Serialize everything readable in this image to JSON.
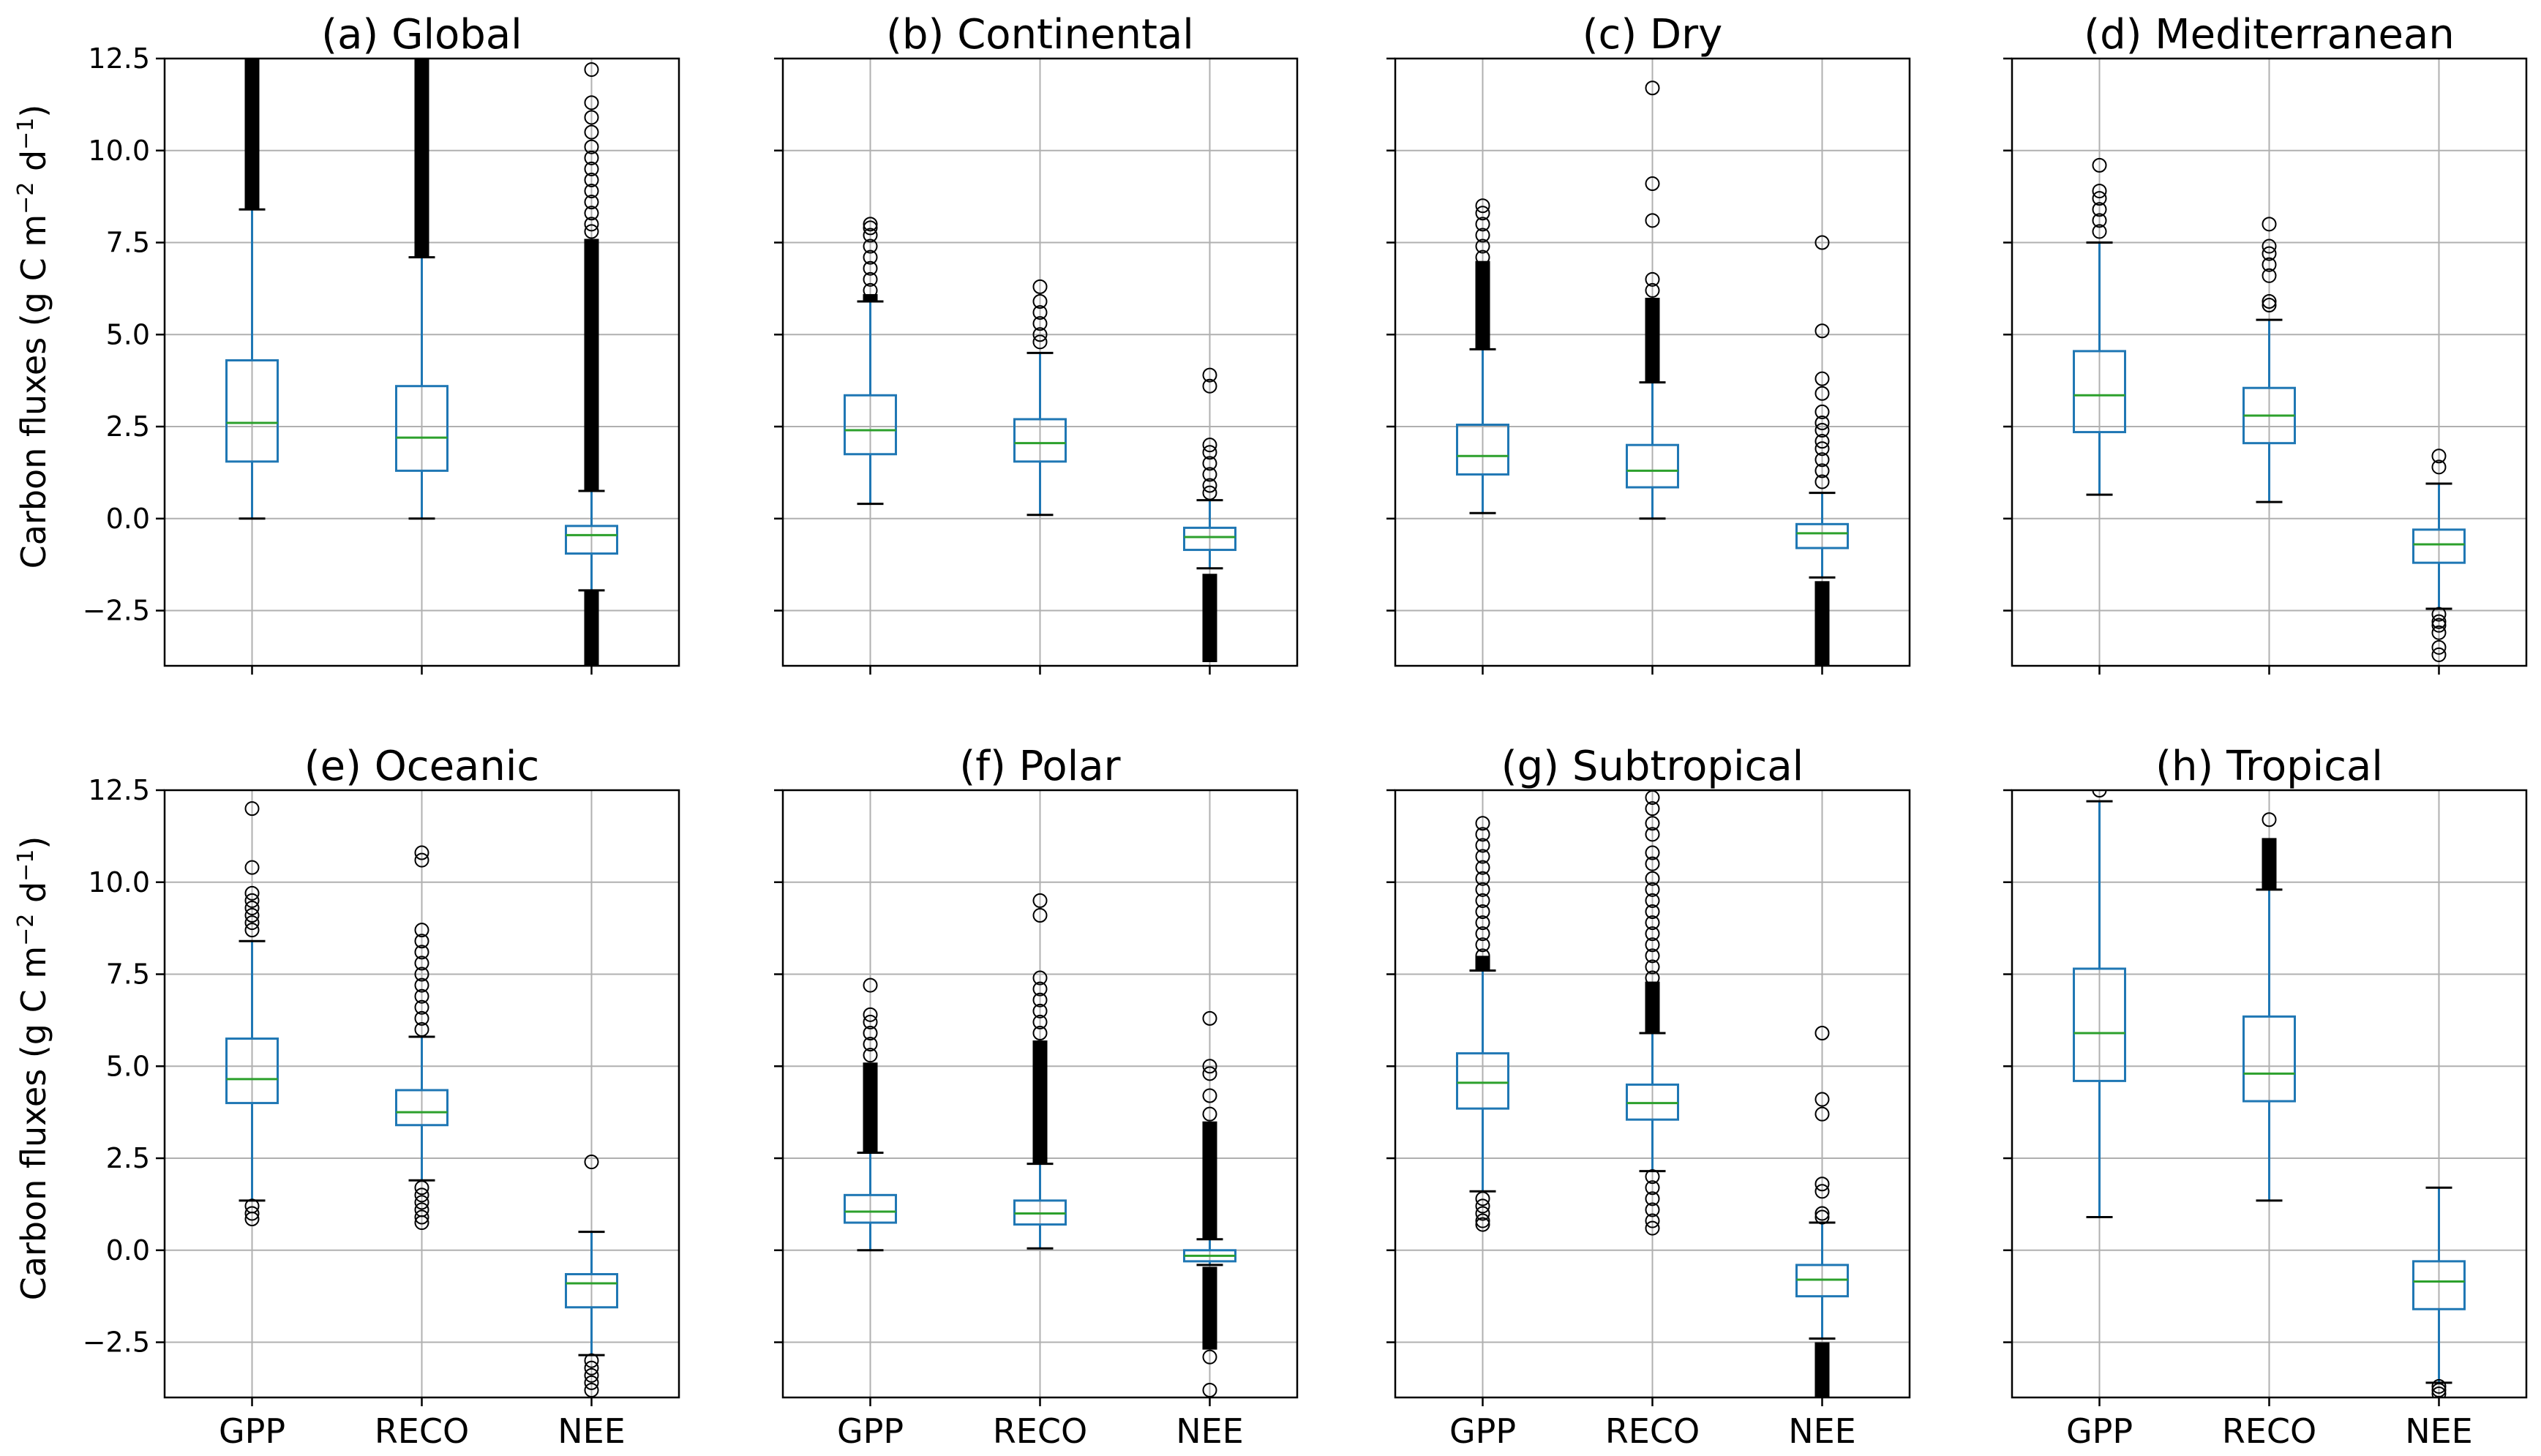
{
  "figure": {
    "ylabel_main": "Carbon fluxes (g C m",
    "ylabel_exp1": "−2",
    "ylabel_mid": " d",
    "ylabel_exp2": "−1",
    "ylabel_end": ")"
  },
  "colors": {
    "box": "#1f77b4",
    "median": "#2ca02c",
    "grid": "#b0b0b0",
    "outlier": "#000000",
    "axes": "#000000"
  },
  "chart_data": [
    {
      "type": "box",
      "title": "(a) Global",
      "categories": [
        "GPP",
        "RECO",
        "NEE"
      ],
      "ylim": [
        -4,
        12.5
      ],
      "yticks": [
        -2.5,
        0.0,
        2.5,
        5.0,
        7.5,
        10.0,
        12.5
      ],
      "ytick_labels": [
        "−2.5",
        "0.0",
        "2.5",
        "5.0",
        "7.5",
        "10.0",
        "12.5"
      ],
      "boxes": [
        {
          "q1": 1.55,
          "median": 2.6,
          "q3": 4.3,
          "whislo": 0.0,
          "whishi": 8.4,
          "outliers": [],
          "dense": [
            [
              8.4,
              12.5
            ]
          ]
        },
        {
          "q1": 1.3,
          "median": 2.2,
          "q3": 3.6,
          "whislo": 0.0,
          "whishi": 7.1,
          "outliers": [],
          "dense": [
            [
              7.1,
              12.5
            ]
          ]
        },
        {
          "q1": -0.95,
          "median": -0.45,
          "q3": -0.2,
          "whislo": -1.95,
          "whishi": 0.75,
          "outliers": [
            12.2,
            11.3,
            10.9,
            10.5,
            10.1,
            9.8,
            9.5,
            9.2,
            8.9,
            8.6,
            8.3,
            8.0,
            7.8
          ],
          "dense": [
            [
              0.75,
              7.6
            ],
            [
              -4.0,
              -1.95
            ]
          ]
        }
      ]
    },
    {
      "type": "box",
      "title": "(b) Continental",
      "categories": [
        "GPP",
        "RECO",
        "NEE"
      ],
      "ylim": [
        -4,
        12.5
      ],
      "boxes": [
        {
          "q1": 1.75,
          "median": 2.4,
          "q3": 3.35,
          "whislo": 0.4,
          "whishi": 5.9,
          "outliers": [
            8.0,
            7.9,
            7.7,
            7.4,
            7.1,
            6.8,
            6.5,
            6.2
          ],
          "dense": [
            [
              5.9,
              6.1
            ]
          ]
        },
        {
          "q1": 1.55,
          "median": 2.05,
          "q3": 2.7,
          "whislo": 0.1,
          "whishi": 4.5,
          "outliers": [
            6.3,
            5.9,
            5.6,
            5.3,
            5.0,
            4.8
          ],
          "dense": []
        },
        {
          "q1": -0.85,
          "median": -0.5,
          "q3": -0.25,
          "whislo": -1.35,
          "whishi": 0.5,
          "outliers": [
            3.9,
            3.6,
            2.0,
            1.8,
            1.5,
            1.2,
            0.9,
            0.7
          ],
          "dense": [
            [
              -3.9,
              -1.5
            ]
          ]
        }
      ]
    },
    {
      "type": "box",
      "title": "(c) Dry",
      "categories": [
        "GPP",
        "RECO",
        "NEE"
      ],
      "ylim": [
        -4,
        12.5
      ],
      "boxes": [
        {
          "q1": 1.2,
          "median": 1.7,
          "q3": 2.55,
          "whislo": 0.15,
          "whishi": 4.6,
          "outliers": [
            8.5,
            8.3,
            8.0,
            7.7,
            7.4,
            7.1
          ],
          "dense": [
            [
              4.6,
              7.0
            ]
          ]
        },
        {
          "q1": 0.85,
          "median": 1.3,
          "q3": 2.0,
          "whislo": 0.0,
          "whishi": 3.7,
          "outliers": [
            11.7,
            9.1,
            8.1,
            6.5,
            6.2
          ],
          "dense": [
            [
              3.7,
              6.0
            ]
          ]
        },
        {
          "q1": -0.8,
          "median": -0.4,
          "q3": -0.15,
          "whislo": -1.6,
          "whishi": 0.7,
          "outliers": [
            7.5,
            5.1,
            3.8,
            3.4,
            2.9,
            2.6,
            2.4,
            2.1,
            1.9,
            1.6,
            1.3,
            1.0
          ],
          "dense": [
            [
              -4.0,
              -1.7
            ]
          ]
        }
      ]
    },
    {
      "type": "box",
      "title": "(d) Mediterranean",
      "categories": [
        "GPP",
        "RECO",
        "NEE"
      ],
      "ylim": [
        -4,
        12.5
      ],
      "boxes": [
        {
          "q1": 2.35,
          "median": 3.35,
          "q3": 4.55,
          "whislo": 0.65,
          "whishi": 7.5,
          "outliers": [
            9.6,
            8.9,
            8.7,
            8.4,
            8.1,
            7.8
          ],
          "dense": []
        },
        {
          "q1": 2.05,
          "median": 2.8,
          "q3": 3.55,
          "whislo": 0.45,
          "whishi": 5.4,
          "outliers": [
            8.0,
            7.4,
            7.2,
            6.9,
            6.6,
            5.9,
            5.8
          ],
          "dense": []
        },
        {
          "q1": -1.2,
          "median": -0.7,
          "q3": -0.3,
          "whislo": -2.45,
          "whishi": 0.95,
          "outliers": [
            1.7,
            1.4,
            -2.6,
            -2.8,
            -2.9,
            -3.1,
            -3.5,
            -3.7
          ],
          "dense": []
        }
      ]
    },
    {
      "type": "box",
      "title": "(e) Oceanic",
      "categories": [
        "GPP",
        "RECO",
        "NEE"
      ],
      "ylim": [
        -4,
        12.5
      ],
      "yticks": [
        -2.5,
        0.0,
        2.5,
        5.0,
        7.5,
        10.0,
        12.5
      ],
      "ytick_labels": [
        "−2.5",
        "0.0",
        "2.5",
        "5.0",
        "7.5",
        "10.0",
        "12.5"
      ],
      "boxes": [
        {
          "q1": 4.0,
          "median": 4.65,
          "q3": 5.75,
          "whislo": 1.35,
          "whishi": 8.4,
          "outliers": [
            12.0,
            10.4,
            9.7,
            9.5,
            9.3,
            9.1,
            8.9,
            8.7,
            1.2,
            1.0,
            0.85
          ],
          "dense": []
        },
        {
          "q1": 3.4,
          "median": 3.75,
          "q3": 4.35,
          "whislo": 1.9,
          "whishi": 5.8,
          "outliers": [
            10.8,
            10.6,
            8.7,
            8.4,
            8.1,
            7.8,
            7.5,
            7.2,
            6.9,
            6.6,
            6.3,
            6.0,
            1.7,
            1.5,
            1.3,
            1.1,
            0.9,
            0.75
          ],
          "dense": []
        },
        {
          "q1": -1.55,
          "median": -0.9,
          "q3": -0.65,
          "whislo": -2.85,
          "whishi": 0.5,
          "outliers": [
            2.4,
            -3.0,
            -3.2,
            -3.4,
            -3.6,
            -3.8
          ],
          "dense": []
        }
      ]
    },
    {
      "type": "box",
      "title": "(f) Polar",
      "categories": [
        "GPP",
        "RECO",
        "NEE"
      ],
      "ylim": [
        -4,
        12.5
      ],
      "boxes": [
        {
          "q1": 0.75,
          "median": 1.05,
          "q3": 1.5,
          "whislo": 0.0,
          "whishi": 2.65,
          "outliers": [
            7.2,
            6.4,
            6.2,
            5.9,
            5.6,
            5.3
          ],
          "dense": [
            [
              2.65,
              5.1
            ]
          ]
        },
        {
          "q1": 0.7,
          "median": 1.0,
          "q3": 1.35,
          "whislo": 0.05,
          "whishi": 2.35,
          "outliers": [
            9.5,
            9.1,
            7.4,
            7.1,
            6.8,
            6.5,
            6.2,
            5.9
          ],
          "dense": [
            [
              2.35,
              5.7
            ]
          ]
        },
        {
          "q1": -0.3,
          "median": -0.15,
          "q3": 0.0,
          "whislo": -0.4,
          "whishi": 0.3,
          "outliers": [
            6.3,
            5.0,
            4.8,
            4.2,
            3.7,
            -2.9,
            -3.8
          ],
          "dense": [
            [
              0.3,
              3.5
            ],
            [
              -2.7,
              -0.45
            ]
          ]
        }
      ]
    },
    {
      "type": "box",
      "title": "(g) Subtropical",
      "categories": [
        "GPP",
        "RECO",
        "NEE"
      ],
      "ylim": [
        -4,
        12.5
      ],
      "boxes": [
        {
          "q1": 3.85,
          "median": 4.55,
          "q3": 5.35,
          "whislo": 1.6,
          "whishi": 7.6,
          "outliers": [
            11.6,
            11.3,
            11.0,
            10.7,
            10.4,
            10.1,
            9.8,
            9.5,
            9.2,
            8.9,
            8.6,
            8.3,
            8.0,
            1.4,
            1.2,
            1.0,
            0.8,
            0.7
          ],
          "dense": [
            [
              7.6,
              8.0
            ]
          ]
        },
        {
          "q1": 3.55,
          "median": 4.0,
          "q3": 4.5,
          "whislo": 2.15,
          "whishi": 5.9,
          "outliers": [
            12.3,
            12.0,
            11.6,
            11.3,
            10.8,
            10.5,
            10.1,
            9.8,
            9.5,
            9.2,
            8.9,
            8.6,
            8.3,
            8.0,
            7.7,
            7.4,
            2.0,
            1.7,
            1.4,
            1.1,
            0.8,
            0.6
          ],
          "dense": [
            [
              5.9,
              7.3
            ]
          ]
        },
        {
          "q1": -1.25,
          "median": -0.8,
          "q3": -0.4,
          "whislo": -2.4,
          "whishi": 0.75,
          "outliers": [
            5.9,
            4.1,
            3.7,
            1.8,
            1.6,
            1.0,
            0.9
          ],
          "dense": [
            [
              -4.0,
              -2.5
            ]
          ]
        }
      ]
    },
    {
      "type": "box",
      "title": "(h) Tropical",
      "categories": [
        "GPP",
        "RECO",
        "NEE"
      ],
      "ylim": [
        -4,
        12.5
      ],
      "boxes": [
        {
          "q1": 4.6,
          "median": 5.9,
          "q3": 7.65,
          "whislo": 0.9,
          "whishi": 12.2,
          "outliers": [
            12.5
          ],
          "dense": []
        },
        {
          "q1": 4.05,
          "median": 4.8,
          "q3": 6.35,
          "whislo": 1.35,
          "whishi": 9.8,
          "outliers": [
            11.7
          ],
          "dense": [
            [
              9.8,
              11.2
            ]
          ]
        },
        {
          "q1": -1.6,
          "median": -0.85,
          "q3": -0.3,
          "whislo": -3.6,
          "whishi": 1.7,
          "outliers": [
            -3.7,
            -3.8,
            -3.9
          ],
          "dense": []
        }
      ]
    }
  ]
}
